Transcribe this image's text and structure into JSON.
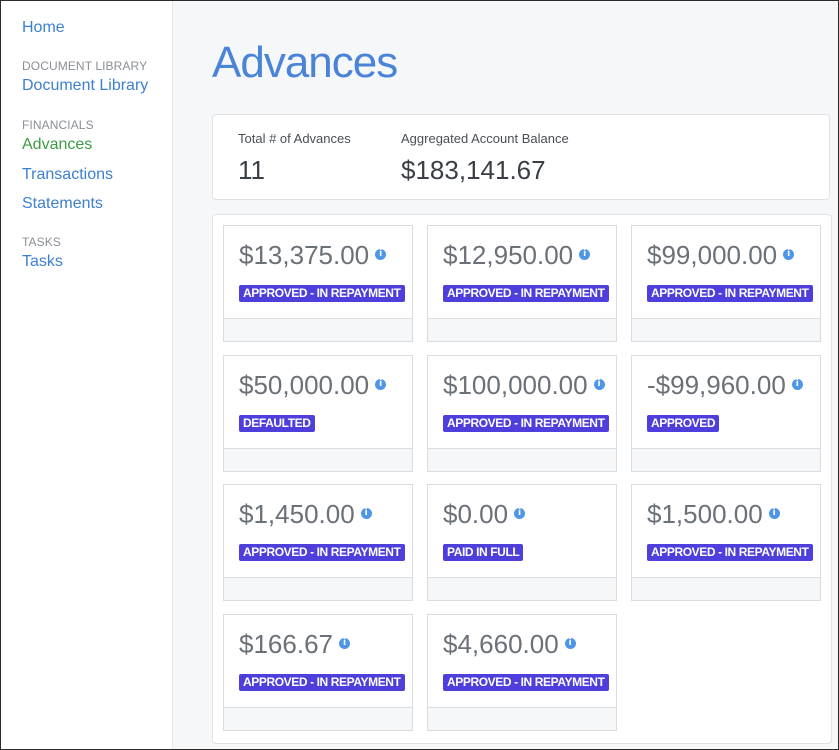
{
  "sidebar": {
    "home": "Home",
    "sections": [
      {
        "title": "DOCUMENT LIBRARY",
        "items": [
          "Document Library"
        ]
      },
      {
        "title": "FINANCIALS",
        "items": [
          "Advances",
          "Transactions",
          "Statements"
        ]
      },
      {
        "title": "TASKS",
        "items": [
          "Tasks"
        ]
      }
    ],
    "active_item": "Advances"
  },
  "page": {
    "title": "Advances"
  },
  "summary": {
    "total_label": "Total # of Advances",
    "total_value": "11",
    "balance_label": "Aggregated Account Balance",
    "balance_value": "$183,141.67"
  },
  "advances": [
    {
      "amount": "$13,375.00",
      "status": "APPROVED - IN REPAYMENT"
    },
    {
      "amount": "$12,950.00",
      "status": "APPROVED - IN REPAYMENT"
    },
    {
      "amount": "$99,000.00",
      "status": "APPROVED - IN REPAYMENT"
    },
    {
      "amount": "$50,000.00",
      "status": "DEFAULTED"
    },
    {
      "amount": "$100,000.00",
      "status": "APPROVED - IN REPAYMENT"
    },
    {
      "amount": "-$99,960.00",
      "status": "APPROVED"
    },
    {
      "amount": "$1,450.00",
      "status": "APPROVED - IN REPAYMENT"
    },
    {
      "amount": "$0.00",
      "status": "PAID IN FULL"
    },
    {
      "amount": "$1,500.00",
      "status": "APPROVED - IN REPAYMENT"
    },
    {
      "amount": "$166.67",
      "status": "APPROVED - IN REPAYMENT"
    },
    {
      "amount": "$4,660.00",
      "status": "APPROVED - IN REPAYMENT"
    }
  ],
  "colors": {
    "link": "#3d7fd0",
    "active_link": "#3e9c44",
    "badge": "#4e3fdc",
    "info_icon": "#4f96e6",
    "title": "#4a84d8"
  },
  "icons": {
    "info": "info-icon"
  }
}
